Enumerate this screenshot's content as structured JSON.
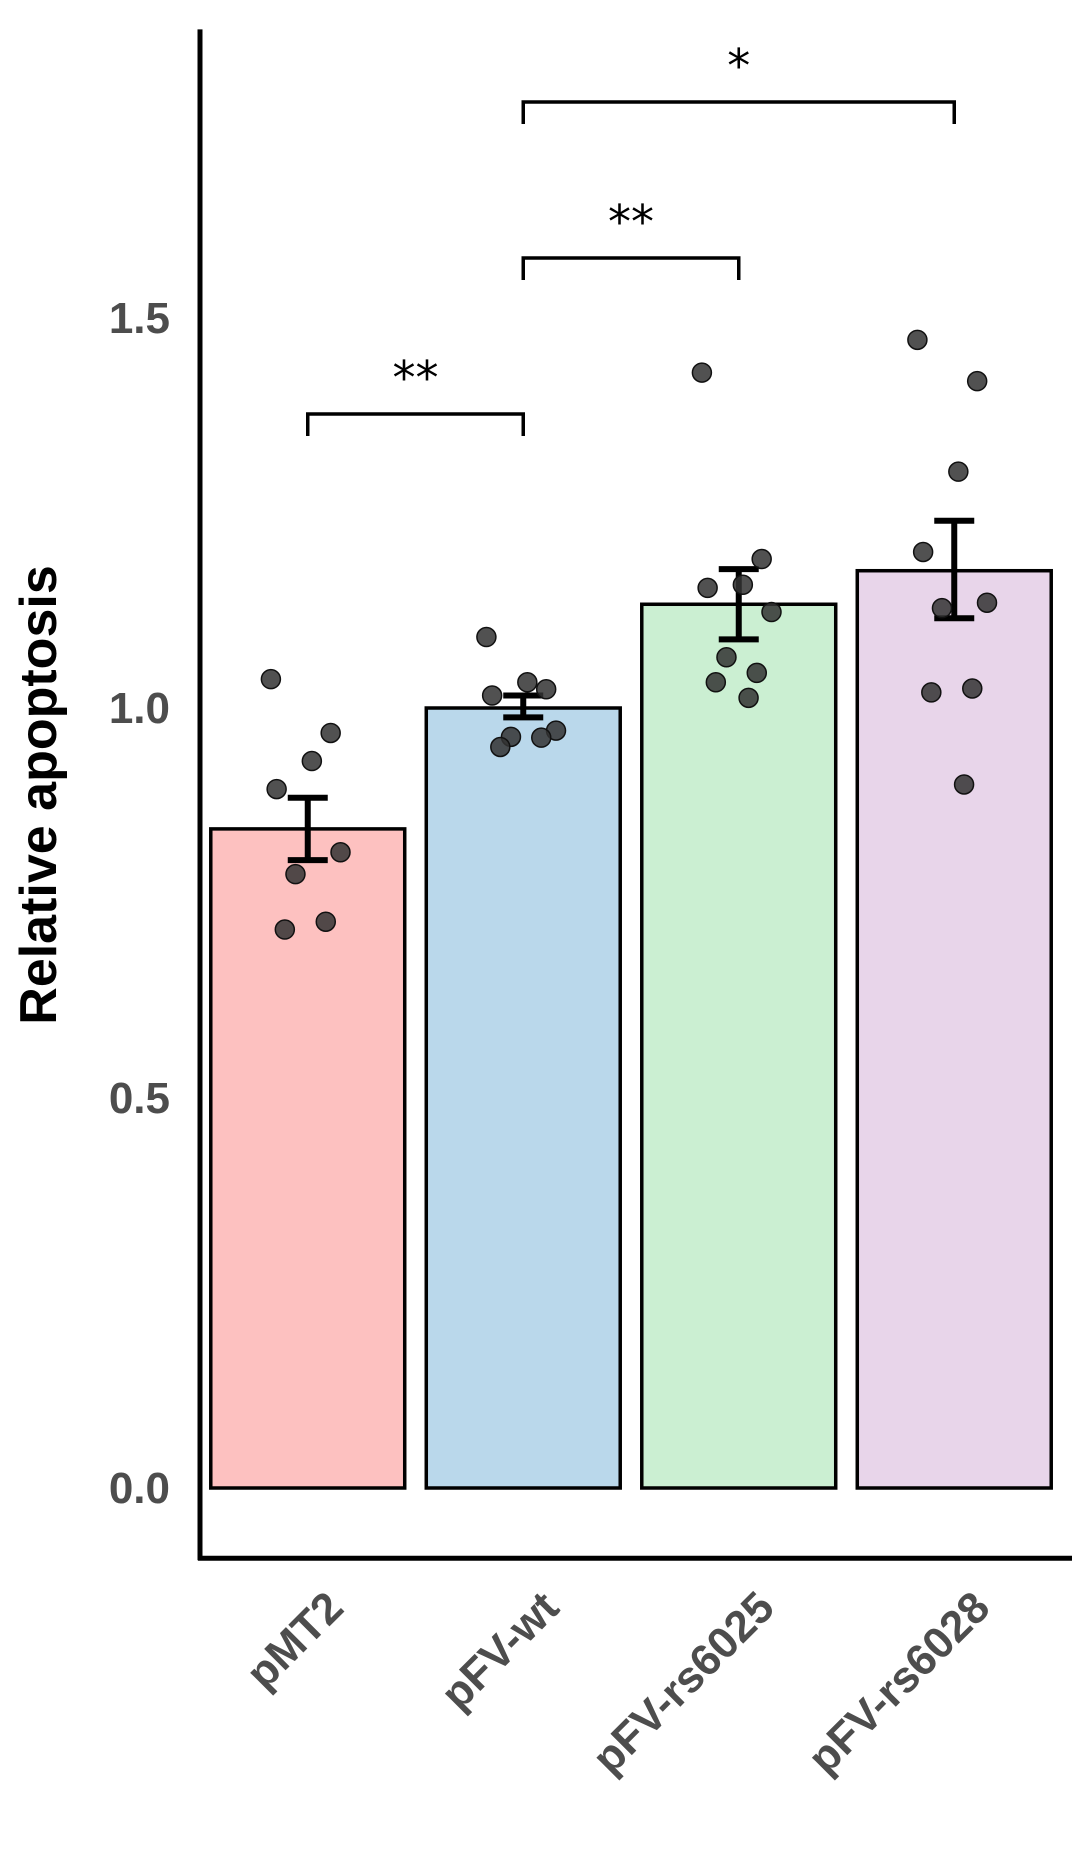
{
  "chart_data": {
    "type": "bar",
    "title": "",
    "xlabel": "",
    "ylabel": "Relative apoptosis",
    "ylim": [
      -0.09,
      1.87
    ],
    "yticks": [
      0.0,
      0.5,
      1.0,
      1.5
    ],
    "ytick_labels": [
      "0.0",
      "0.5",
      "1.0",
      "1.5"
    ],
    "categories": [
      "pMT2",
      "pFV-wt",
      "pFV-rs6025",
      "pFV-rs6028"
    ],
    "values": [
      0.845,
      1.0,
      1.133,
      1.176
    ],
    "errors": [
      {
        "low": 0.805,
        "high": 0.885
      },
      {
        "low": 0.988,
        "high": 1.016
      },
      {
        "low": 1.088,
        "high": 1.178
      },
      {
        "low": 1.115,
        "high": 1.24
      }
    ],
    "colors": [
      "#FDC1C0",
      "#BAD8EB",
      "#CBEFD2",
      "#E8D5EA"
    ],
    "points": [
      [
        1.037,
        0.968,
        0.932,
        0.896,
        0.815,
        0.787,
        0.726,
        0.716
      ],
      [
        1.091,
        1.024,
        1.033,
        1.016,
        0.971,
        0.963,
        0.962,
        0.95
      ],
      [
        1.43,
        1.191,
        1.158,
        1.154,
        1.123,
        1.065,
        1.045,
        1.033,
        1.013
      ],
      [
        1.472,
        1.419,
        1.303,
        1.2,
        1.135,
        1.128,
        1.025,
        1.02,
        0.902
      ]
    ],
    "significance": [
      {
        "from": 0,
        "to": 1,
        "y": 1.377,
        "label": "**"
      },
      {
        "from": 1,
        "to": 2,
        "y": 1.577,
        "label": "**"
      },
      {
        "from": 1,
        "to": 3,
        "y": 1.777,
        "label": "*"
      }
    ]
  }
}
